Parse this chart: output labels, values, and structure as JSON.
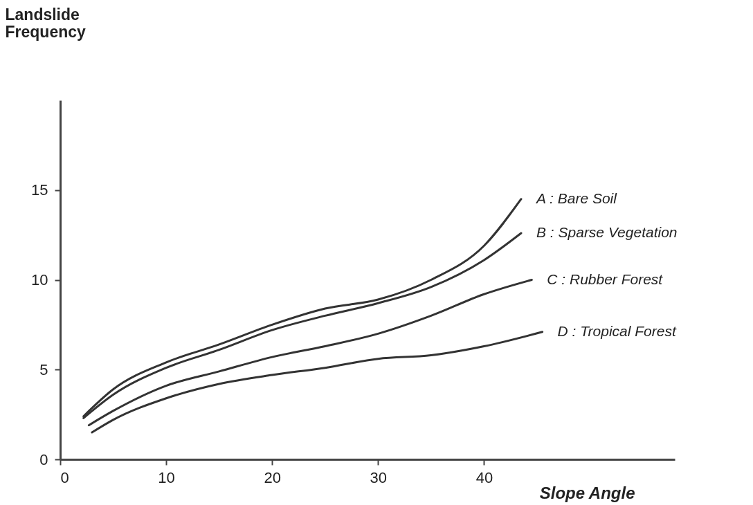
{
  "chart_data": {
    "type": "line",
    "xlabel": "Slope Angle",
    "ylabel": "Landslide Frequency",
    "xlim": [
      0,
      58
    ],
    "ylim": [
      0,
      20
    ],
    "xticks": [
      0,
      10,
      20,
      30,
      40
    ],
    "yticks": [
      0,
      5,
      10,
      15
    ],
    "grid": false,
    "legend": false,
    "marker": "none",
    "line_style": "solid",
    "series": [
      {
        "name": "A : Bare Soil",
        "color": "#333333",
        "x": [
          2.2,
          5,
          10,
          15,
          20,
          25,
          30,
          35,
          40,
          43.5
        ],
        "values": [
          2.4,
          3.9,
          5.4,
          6.4,
          7.5,
          8.4,
          8.9,
          10.0,
          11.9,
          14.5
        ]
      },
      {
        "name": "B : Sparse Vegetation",
        "color": "#333333",
        "x": [
          2.2,
          5,
          10,
          15,
          20,
          25,
          30,
          35,
          40,
          43.5
        ],
        "values": [
          2.3,
          3.6,
          5.1,
          6.1,
          7.2,
          8.0,
          8.7,
          9.6,
          11.1,
          12.6
        ]
      },
      {
        "name": "C : Rubber Forest",
        "color": "#333333",
        "x": [
          2.7,
          5,
          10,
          15,
          20,
          25,
          30,
          35,
          40,
          44.5
        ],
        "values": [
          1.9,
          2.7,
          4.1,
          4.9,
          5.7,
          6.3,
          7.0,
          8.0,
          9.2,
          10.0
        ]
      },
      {
        "name": "D : Tropical Forest",
        "color": "#333333",
        "x": [
          3,
          5,
          10,
          15,
          20,
          25,
          30,
          35,
          40,
          45.5
        ],
        "values": [
          1.5,
          2.2,
          3.4,
          4.2,
          4.7,
          5.1,
          5.6,
          5.8,
          6.3,
          7.1
        ]
      }
    ]
  }
}
